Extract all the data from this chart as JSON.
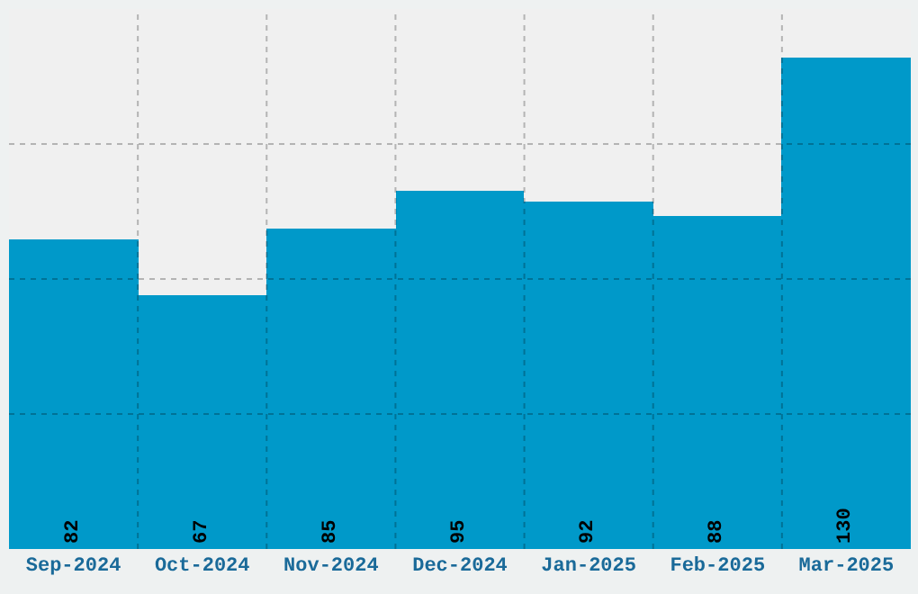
{
  "chart_data": {
    "type": "bar",
    "categories": [
      "Sep-2024",
      "Oct-2024",
      "Nov-2024",
      "Dec-2024",
      "Jan-2025",
      "Feb-2025",
      "Mar-2025"
    ],
    "values": [
      82,
      67,
      85,
      95,
      92,
      88,
      130
    ],
    "color": "#0099c9",
    "ylim": [
      0,
      143
    ],
    "grid": true,
    "data_labels": true,
    "tick_labels": "x"
  }
}
